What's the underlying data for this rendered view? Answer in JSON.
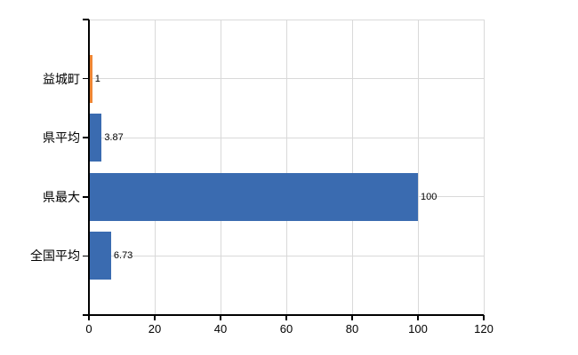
{
  "chart_data": {
    "type": "bar",
    "orientation": "horizontal",
    "title": "",
    "legend": "none",
    "categories": [
      "益城町",
      "県平均",
      "県最大",
      "全国平均"
    ],
    "values": [
      1,
      3.87,
      100,
      6.73
    ],
    "value_labels": [
      "1",
      "3.87",
      "100",
      "6.73"
    ],
    "bar_colors": [
      "#ee8634",
      "#3a6bb0",
      "#3a6bb0",
      "#3a6bb0"
    ],
    "x_axis": {
      "ticks": [
        0,
        20,
        40,
        60,
        80,
        100,
        120
      ],
      "range": [
        0,
        120
      ]
    },
    "grid": {
      "vertical": true,
      "horizontal": true,
      "color": "#d9d9d9"
    },
    "axis_color": "#000000",
    "text_color": "#000000",
    "background": "#ffffff"
  }
}
